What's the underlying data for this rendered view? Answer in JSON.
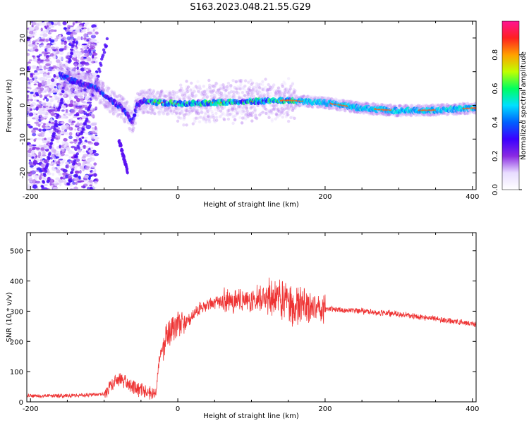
{
  "figure_title": "S163.2023.048.21.55.G29",
  "chart_data": [
    {
      "type": "heatmap",
      "xlabel": "Height of straight line (km)",
      "ylabel": "Frequency (Hz)",
      "xlim": [
        -205,
        405
      ],
      "ylim": [
        -25,
        25
      ],
      "xticks": [
        -200,
        0,
        200,
        400
      ],
      "yticks": [
        -20,
        -10,
        0,
        10,
        20
      ],
      "colorbar": {
        "label": "Normalized spectral amplitude",
        "range": [
          0,
          1
        ],
        "ticks": [
          0.0,
          0.2,
          0.4,
          0.6,
          0.8
        ],
        "colormap": [
          "#ffffff",
          "#e8dcff",
          "#8a2be2",
          "#3b00ff",
          "#0060ff",
          "#00e0ff",
          "#00ff60",
          "#c0ff00",
          "#ffa000",
          "#ff2020",
          "#ff1493"
        ]
      },
      "ridge": {
        "x": [
          -200,
          -150,
          -110,
          -95,
          -80,
          -70,
          -62,
          -55,
          -45,
          -35,
          0,
          50,
          100,
          150,
          200,
          250,
          300,
          350,
          400
        ],
        "y": [
          14,
          8,
          5,
          2,
          0,
          -2,
          -5,
          0,
          1.5,
          1,
          0.5,
          0.8,
          1.2,
          1.5,
          0.8,
          -0.8,
          -1.6,
          -1.4,
          -0.8
        ]
      }
    },
    {
      "type": "line",
      "xlabel": "Height of straight line (km)",
      "ylabel": "SNR (10 * v/v)",
      "xlim": [
        -205,
        405
      ],
      "ylim": [
        0,
        560
      ],
      "xticks": [
        -200,
        0,
        200,
        400
      ],
      "yticks": [
        0,
        100,
        200,
        300,
        400,
        500
      ],
      "series": [
        {
          "color": "#ee3333",
          "x": [
            -205,
            -150,
            -100,
            -90,
            -75,
            -60,
            -45,
            -30,
            -25,
            -15,
            -5,
            0,
            15,
            30,
            50,
            80,
            100,
            120,
            140,
            150,
            170,
            200,
            250,
            300,
            350,
            405
          ],
          "y": [
            20,
            20,
            25,
            60,
            75,
            50,
            35,
            25,
            140,
            220,
            240,
            255,
            270,
            310,
            330,
            335,
            340,
            345,
            340,
            330,
            320,
            308,
            300,
            290,
            275,
            255
          ]
        }
      ]
    }
  ]
}
